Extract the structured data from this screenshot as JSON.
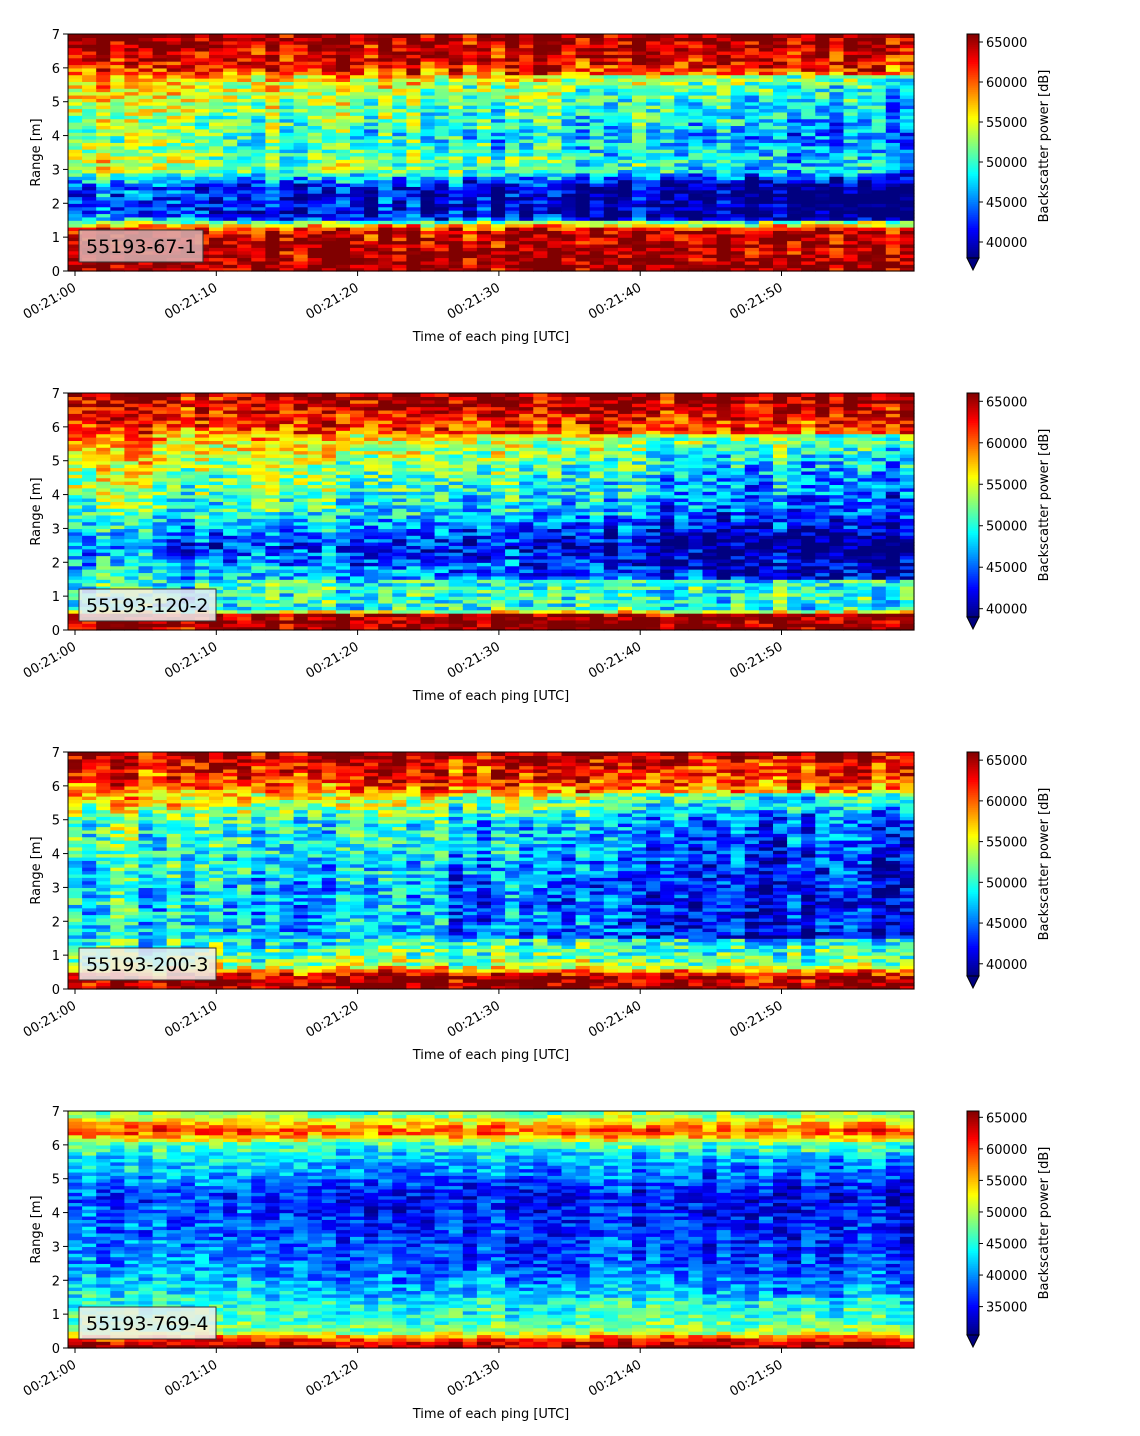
{
  "chart_data": [
    {
      "type": "heatmap",
      "id": "55193-67-1",
      "label_box_text": "55193-67-1",
      "label_box_color": "#dcb4b4",
      "xlabel": "Time of each ping [UTC]",
      "ylabel": "Range [m]",
      "ylim": [
        0,
        7
      ],
      "yticks": [
        "0",
        "1",
        "2",
        "3",
        "4",
        "5",
        "6",
        "7"
      ],
      "xticks": [
        "00:21:00",
        "00:21:10",
        "00:21:20",
        "00:21:30",
        "00:21:40",
        "00:21:50"
      ],
      "x_time_range_s": [
        0,
        59.5
      ],
      "colorbar": {
        "label": "Backscatter power [dB]",
        "min": 38000,
        "max": 66000,
        "ticks": [
          "40000",
          "45000",
          "50000",
          "55000",
          "60000",
          "65000"
        ],
        "extend": "min",
        "colormap": "jet"
      },
      "profile": [
        {
          "range_m": 0.0,
          "value": 66000
        },
        {
          "range_m": 1.2,
          "value": 64000
        },
        {
          "range_m": 1.6,
          "value": 44000
        },
        {
          "range_m": 2.5,
          "value": 44000
        },
        {
          "range_m": 3.0,
          "value": 55000
        },
        {
          "range_m": 4.0,
          "value": 52000
        },
        {
          "range_m": 5.5,
          "value": 57000
        },
        {
          "range_m": 6.2,
          "value": 63000
        },
        {
          "range_m": 7.0,
          "value": 66000
        }
      ],
      "trend_per_10s": -800,
      "noise": 5500
    },
    {
      "type": "heatmap",
      "id": "55193-120-2",
      "label_box_text": "55193-120-2",
      "label_box_color": "#eeeeee",
      "xlabel": "Time of each ping [UTC]",
      "ylabel": "Range [m]",
      "ylim": [
        0,
        7
      ],
      "yticks": [
        "0",
        "1",
        "2",
        "3",
        "4",
        "5",
        "6",
        "7"
      ],
      "xticks": [
        "00:21:00",
        "00:21:10",
        "00:21:20",
        "00:21:30",
        "00:21:40",
        "00:21:50"
      ],
      "x_time_range_s": [
        0,
        59.5
      ],
      "colorbar": {
        "label": "Backscatter power [dB]",
        "min": 39000,
        "max": 66000,
        "ticks": [
          "40000",
          "45000",
          "50000",
          "55000",
          "60000",
          "65000"
        ],
        "extend": "min",
        "colormap": "jet"
      },
      "profile": [
        {
          "range_m": 0.0,
          "value": 66000
        },
        {
          "range_m": 0.45,
          "value": 65000
        },
        {
          "range_m": 0.6,
          "value": 50000
        },
        {
          "range_m": 1.5,
          "value": 50000
        },
        {
          "range_m": 2.5,
          "value": 46000
        },
        {
          "range_m": 3.5,
          "value": 52000
        },
        {
          "range_m": 5.0,
          "value": 56000
        },
        {
          "range_m": 6.2,
          "value": 62000
        },
        {
          "range_m": 7.0,
          "value": 65500
        }
      ],
      "trend_per_10s": -900,
      "noise": 5500
    },
    {
      "type": "heatmap",
      "id": "55193-200-3",
      "label_box_text": "55193-200-3",
      "label_box_color": "#eeeeee",
      "xlabel": "Time of each ping [UTC]",
      "ylabel": "Range [m]",
      "ylim": [
        0,
        7
      ],
      "yticks": [
        "0",
        "1",
        "2",
        "3",
        "4",
        "5",
        "6",
        "7"
      ],
      "xticks": [
        "00:21:00",
        "00:21:10",
        "00:21:20",
        "00:21:30",
        "00:21:40",
        "00:21:50"
      ],
      "x_time_range_s": [
        0,
        59.5
      ],
      "colorbar": {
        "label": "Backscatter power [dB]",
        "min": 38500,
        "max": 66000,
        "ticks": [
          "40000",
          "45000",
          "50000",
          "55000",
          "60000",
          "65000"
        ],
        "extend": "min",
        "colormap": "jet"
      },
      "profile": [
        {
          "range_m": 0.0,
          "value": 66000
        },
        {
          "range_m": 0.4,
          "value": 64500
        },
        {
          "range_m": 0.7,
          "value": 53000
        },
        {
          "range_m": 1.5,
          "value": 49000
        },
        {
          "range_m": 3.0,
          "value": 49000
        },
        {
          "range_m": 5.0,
          "value": 52000
        },
        {
          "range_m": 6.0,
          "value": 60000
        },
        {
          "range_m": 7.0,
          "value": 65000
        }
      ],
      "trend_per_10s": -800,
      "noise": 5500
    },
    {
      "type": "heatmap",
      "id": "55193-769-4",
      "label_box_text": "55193-769-4",
      "label_box_color": "#eeeeee",
      "xlabel": "Time of each ping [UTC]",
      "ylabel": "Range [m]",
      "ylim": [
        0,
        7
      ],
      "yticks": [
        "0",
        "1",
        "2",
        "3",
        "4",
        "5",
        "6",
        "7"
      ],
      "xticks": [
        "00:21:00",
        "00:21:10",
        "00:21:20",
        "00:21:30",
        "00:21:40",
        "00:21:50"
      ],
      "x_time_range_s": [
        0,
        59.5
      ],
      "colorbar": {
        "label": "Backscatter power [dB]",
        "min": 30500,
        "max": 66000,
        "ticks": [
          "35000",
          "40000",
          "45000",
          "50000",
          "55000",
          "60000",
          "65000"
        ],
        "extend": "min",
        "colormap": "jet"
      },
      "profile": [
        {
          "range_m": 0.0,
          "value": 66000
        },
        {
          "range_m": 0.3,
          "value": 60000
        },
        {
          "range_m": 0.5,
          "value": 48000
        },
        {
          "range_m": 1.5,
          "value": 44000
        },
        {
          "range_m": 2.5,
          "value": 40000
        },
        {
          "range_m": 4.5,
          "value": 37000
        },
        {
          "range_m": 6.0,
          "value": 46000
        },
        {
          "range_m": 6.4,
          "value": 60000
        },
        {
          "range_m": 7.0,
          "value": 47000
        }
      ],
      "trend_per_10s": -300,
      "noise": 5000
    }
  ]
}
